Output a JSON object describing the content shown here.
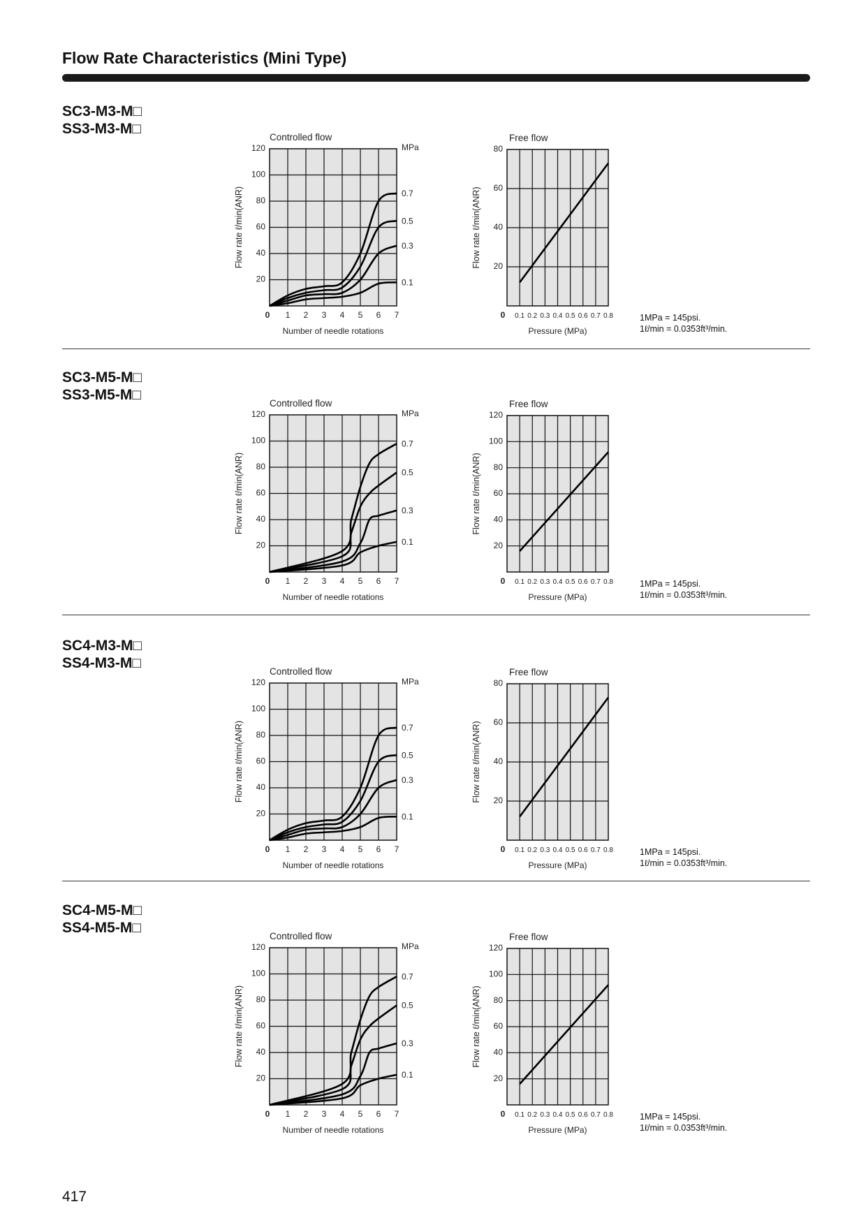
{
  "page_title": "Flow Rate Characteristics (Mini Type)",
  "page_number": "417",
  "sections": [
    {
      "models": [
        "SC3-M3-M□",
        "SS3-M3-M□"
      ],
      "notes": [
        "1MPa = 145psi.",
        "1ℓ/min = 0.0353ft³/min."
      ]
    },
    {
      "models": [
        "SC3-M5-M□",
        "SS3-M5-M□"
      ],
      "notes": [
        "1MPa = 145psi.",
        "1ℓ/min = 0.0353ft³/min."
      ]
    },
    {
      "models": [
        "SC4-M3-M□",
        "SS4-M3-M□"
      ],
      "notes": [
        "1MPa = 145psi.",
        "1ℓ/min = 0.0353ft³/min."
      ]
    },
    {
      "models": [
        "SC4-M5-M□",
        "SS4-M5-M□"
      ],
      "notes": [
        "1MPa = 145psi.",
        "1ℓ/min = 0.0353ft³/min."
      ]
    }
  ],
  "chart_data": [
    {
      "type": "line",
      "title": "Controlled flow",
      "xlabel": "Number of needle rotations",
      "ylabel": "Flow rate  ℓ/min(ANR)",
      "series_unit": "MPa",
      "xlim": [
        0,
        7
      ],
      "ylim": [
        0,
        120
      ],
      "xticks": [
        "0",
        "1",
        "2",
        "3",
        "4",
        "5",
        "6",
        "7"
      ],
      "yticks": [
        "20",
        "40",
        "60",
        "80",
        "100",
        "120"
      ],
      "grid": true,
      "series": [
        {
          "name": "0.7",
          "x": [
            0,
            1,
            2,
            3,
            4,
            5,
            6,
            7
          ],
          "y": [
            0,
            8,
            13,
            15,
            18,
            40,
            80,
            86
          ]
        },
        {
          "name": "0.5",
          "x": [
            0,
            1,
            2,
            3,
            4,
            5,
            6,
            7
          ],
          "y": [
            0,
            6,
            10,
            12,
            14,
            30,
            60,
            65
          ]
        },
        {
          "name": "0.3",
          "x": [
            0,
            1,
            2,
            3,
            4,
            5,
            6,
            7
          ],
          "y": [
            0,
            4,
            8,
            9,
            10,
            20,
            40,
            46
          ]
        },
        {
          "name": "0.1",
          "x": [
            0,
            1,
            2,
            3,
            4,
            5,
            6,
            7
          ],
          "y": [
            0,
            2,
            5,
            6,
            7,
            10,
            17,
            18
          ]
        }
      ]
    },
    {
      "type": "line",
      "title": "Free flow",
      "xlabel": "Pressure (MPa)",
      "ylabel": "Flow rate  ℓ/min(ANR)",
      "xlim": [
        0,
        0.8
      ],
      "ylim": [
        0,
        80
      ],
      "xticks": [
        "0",
        "0.1",
        "0.2",
        "0.3",
        "0.4",
        "0.5",
        "0.6",
        "0.7",
        "0.8"
      ],
      "yticks": [
        "20",
        "40",
        "60",
        "80"
      ],
      "grid": true,
      "series": [
        {
          "name": "free",
          "x": [
            0.1,
            0.8
          ],
          "y": [
            12,
            73
          ]
        }
      ]
    },
    {
      "type": "line",
      "title": "Controlled flow",
      "xlabel": "Number of needle rotations",
      "ylabel": "Flow rate  ℓ/min(ANR)",
      "series_unit": "MPa",
      "xlim": [
        0,
        7
      ],
      "ylim": [
        0,
        120
      ],
      "xticks": [
        "0",
        "1",
        "2",
        "3",
        "4",
        "5",
        "6",
        "7"
      ],
      "yticks": [
        "20",
        "40",
        "60",
        "80",
        "100",
        "120"
      ],
      "grid": true,
      "series": [
        {
          "name": "0.7",
          "x": [
            0,
            4,
            4.5,
            5,
            5.5,
            6,
            7
          ],
          "y": [
            0,
            16,
            40,
            65,
            83,
            90,
            98
          ]
        },
        {
          "name": "0.5",
          "x": [
            0,
            4,
            4.5,
            5,
            5.5,
            6,
            7
          ],
          "y": [
            0,
            12,
            30,
            50,
            60,
            66,
            76
          ]
        },
        {
          "name": "0.3",
          "x": [
            0,
            4,
            5,
            5.5,
            6,
            7
          ],
          "y": [
            0,
            8,
            22,
            40,
            43,
            47
          ]
        },
        {
          "name": "0.1",
          "x": [
            0,
            4,
            5,
            6,
            7
          ],
          "y": [
            0,
            5,
            15,
            20,
            23
          ]
        }
      ]
    },
    {
      "type": "line",
      "title": "Free flow",
      "xlabel": "Pressure (MPa)",
      "ylabel": "Flow rate  ℓ/min(ANR)",
      "xlim": [
        0,
        0.8
      ],
      "ylim": [
        0,
        120
      ],
      "xticks": [
        "0",
        "0.1",
        "0.2",
        "0.3",
        "0.4",
        "0.5",
        "0.6",
        "0.7",
        "0.8"
      ],
      "yticks": [
        "20",
        "40",
        "60",
        "80",
        "100",
        "120"
      ],
      "grid": true,
      "series": [
        {
          "name": "free",
          "x": [
            0.1,
            0.8
          ],
          "y": [
            16,
            92
          ]
        }
      ]
    },
    {
      "type": "line",
      "title": "Controlled flow",
      "xlabel": "Number of needle rotations",
      "ylabel": "Flow rate  ℓ/min(ANR)",
      "series_unit": "MPa",
      "xlim": [
        0,
        7
      ],
      "ylim": [
        0,
        120
      ],
      "xticks": [
        "0",
        "1",
        "2",
        "3",
        "4",
        "5",
        "6",
        "7"
      ],
      "yticks": [
        "20",
        "40",
        "60",
        "80",
        "100",
        "120"
      ],
      "grid": true,
      "series": [
        {
          "name": "0.7",
          "x": [
            0,
            1,
            2,
            3,
            4,
            5,
            6,
            7
          ],
          "y": [
            0,
            8,
            13,
            15,
            18,
            40,
            80,
            86
          ]
        },
        {
          "name": "0.5",
          "x": [
            0,
            1,
            2,
            3,
            4,
            5,
            6,
            7
          ],
          "y": [
            0,
            6,
            10,
            12,
            14,
            30,
            60,
            65
          ]
        },
        {
          "name": "0.3",
          "x": [
            0,
            1,
            2,
            3,
            4,
            5,
            6,
            7
          ],
          "y": [
            0,
            4,
            8,
            9,
            10,
            20,
            40,
            46
          ]
        },
        {
          "name": "0.1",
          "x": [
            0,
            1,
            2,
            3,
            4,
            5,
            6,
            7
          ],
          "y": [
            0,
            2,
            5,
            6,
            7,
            10,
            17,
            18
          ]
        }
      ]
    },
    {
      "type": "line",
      "title": "Free flow",
      "xlabel": "Pressure (MPa)",
      "ylabel": "Flow rate  ℓ/min(ANR)",
      "xlim": [
        0,
        0.8
      ],
      "ylim": [
        0,
        80
      ],
      "xticks": [
        "0",
        "0.1",
        "0.2",
        "0.3",
        "0.4",
        "0.5",
        "0.6",
        "0.7",
        "0.8"
      ],
      "yticks": [
        "20",
        "40",
        "60",
        "80"
      ],
      "grid": true,
      "series": [
        {
          "name": "free",
          "x": [
            0.1,
            0.8
          ],
          "y": [
            12,
            73
          ]
        }
      ]
    },
    {
      "type": "line",
      "title": "Controlled flow",
      "xlabel": "Number of needle rotations",
      "ylabel": "Flow rate  ℓ/min(ANR)",
      "series_unit": "MPa",
      "xlim": [
        0,
        7
      ],
      "ylim": [
        0,
        120
      ],
      "xticks": [
        "0",
        "1",
        "2",
        "3",
        "4",
        "5",
        "6",
        "7"
      ],
      "yticks": [
        "20",
        "40",
        "60",
        "80",
        "100",
        "120"
      ],
      "grid": true,
      "series": [
        {
          "name": "0.7",
          "x": [
            0,
            4,
            4.5,
            5,
            5.5,
            6,
            7
          ],
          "y": [
            0,
            16,
            40,
            65,
            83,
            90,
            98
          ]
        },
        {
          "name": "0.5",
          "x": [
            0,
            4,
            4.5,
            5,
            5.5,
            6,
            7
          ],
          "y": [
            0,
            12,
            30,
            50,
            60,
            66,
            76
          ]
        },
        {
          "name": "0.3",
          "x": [
            0,
            4,
            5,
            5.5,
            6,
            7
          ],
          "y": [
            0,
            8,
            22,
            40,
            43,
            47
          ]
        },
        {
          "name": "0.1",
          "x": [
            0,
            4,
            5,
            6,
            7
          ],
          "y": [
            0,
            5,
            15,
            20,
            23
          ]
        }
      ]
    },
    {
      "type": "line",
      "title": "Free flow",
      "xlabel": "Pressure (MPa)",
      "ylabel": "Flow rate  ℓ/min(ANR)",
      "xlim": [
        0,
        0.8
      ],
      "ylim": [
        0,
        120
      ],
      "xticks": [
        "0",
        "0.1",
        "0.2",
        "0.3",
        "0.4",
        "0.5",
        "0.6",
        "0.7",
        "0.8"
      ],
      "yticks": [
        "20",
        "40",
        "60",
        "80",
        "100",
        "120"
      ],
      "grid": true,
      "series": [
        {
          "name": "free",
          "x": [
            0.1,
            0.8
          ],
          "y": [
            16,
            92
          ]
        }
      ]
    }
  ]
}
